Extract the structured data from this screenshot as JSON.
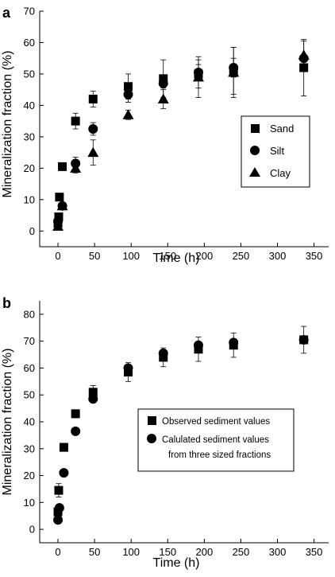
{
  "chart_data": [
    {
      "panel": "a",
      "type": "scatter",
      "xlabel": "Time (h)",
      "ylabel": "Mineralization fraction (%)",
      "xlim": [
        -25,
        370
      ],
      "ylim": [
        -5,
        70
      ],
      "xticks": [
        0,
        50,
        100,
        150,
        200,
        250,
        300,
        350
      ],
      "yticks": [
        0,
        10,
        20,
        30,
        40,
        50,
        60,
        70
      ],
      "legend_position": "middle-right",
      "grid": false,
      "series": [
        {
          "name": "Sand",
          "marker": "square",
          "points": [
            {
              "x": 0,
              "y": 2.5,
              "err": 0
            },
            {
              "x": 1,
              "y": 4.5,
              "err": 0
            },
            {
              "x": 2,
              "y": 10.8,
              "err": 0
            },
            {
              "x": 6,
              "y": 20.5,
              "err": 1.0
            },
            {
              "x": 24,
              "y": 35.0,
              "err": 2.5
            },
            {
              "x": 48,
              "y": 42.0,
              "err": 2.5
            },
            {
              "x": 96,
              "y": 46.0,
              "err": 4.0
            },
            {
              "x": 144,
              "y": 48.5,
              "err": 6.0
            },
            {
              "x": 192,
              "y": 50.0,
              "err": 4.5
            },
            {
              "x": 240,
              "y": 51.0,
              "err": 7.5
            },
            {
              "x": 336,
              "y": 52.0,
              "err": 9.0
            }
          ]
        },
        {
          "name": "Silt",
          "marker": "circle",
          "points": [
            {
              "x": 0,
              "y": 3.0,
              "err": 0
            },
            {
              "x": 6,
              "y": 8.0,
              "err": 0
            },
            {
              "x": 24,
              "y": 21.5,
              "err": 2.0
            },
            {
              "x": 48,
              "y": 32.5,
              "err": 2.0
            },
            {
              "x": 96,
              "y": 43.5,
              "err": 2.5
            },
            {
              "x": 144,
              "y": 47.0,
              "err": 1.5
            },
            {
              "x": 192,
              "y": 50.5,
              "err": 2.5
            },
            {
              "x": 240,
              "y": 52.0,
              "err": 3.0
            },
            {
              "x": 336,
              "y": 55.0,
              "err": 1.0
            }
          ]
        },
        {
          "name": "Clay",
          "marker": "triangle",
          "points": [
            {
              "x": 0,
              "y": 1.5,
              "err": 0
            },
            {
              "x": 6,
              "y": 8.0,
              "err": 0
            },
            {
              "x": 24,
              "y": 20.0,
              "err": 1.5
            },
            {
              "x": 48,
              "y": 25.0,
              "err": 4.0
            },
            {
              "x": 96,
              "y": 37.0,
              "err": 1.5
            },
            {
              "x": 144,
              "y": 42.0,
              "err": 3.0
            },
            {
              "x": 192,
              "y": 49.0,
              "err": 6.5
            },
            {
              "x": 240,
              "y": 50.5,
              "err": 8.0
            },
            {
              "x": 336,
              "y": 56.0,
              "err": 4.5
            }
          ]
        }
      ]
    },
    {
      "panel": "b",
      "type": "scatter",
      "xlabel": "Time (h)",
      "ylabel": "Mineralization fraction (%)",
      "xlim": [
        -25,
        370
      ],
      "ylim": [
        -5,
        85
      ],
      "xticks": [
        0,
        50,
        100,
        150,
        200,
        250,
        300,
        350
      ],
      "yticks": [
        0,
        10,
        20,
        30,
        40,
        50,
        60,
        70,
        80
      ],
      "legend_position": "middle-right",
      "grid": false,
      "series": [
        {
          "name": "Observed sediment values",
          "marker": "square",
          "points": [
            {
              "x": 0,
              "y": 6.5,
              "err": 0
            },
            {
              "x": 1,
              "y": 14.5,
              "err": 2.5
            },
            {
              "x": 8,
              "y": 30.5,
              "err": 1.5
            },
            {
              "x": 24,
              "y": 43.0,
              "err": 1.5
            },
            {
              "x": 48,
              "y": 51.0,
              "err": 2.5
            },
            {
              "x": 96,
              "y": 58.5,
              "err": 3.5
            },
            {
              "x": 144,
              "y": 64.0,
              "err": 3.5
            },
            {
              "x": 192,
              "y": 67.0,
              "err": 4.5
            },
            {
              "x": 240,
              "y": 68.5,
              "err": 4.5
            },
            {
              "x": 336,
              "y": 70.5,
              "err": 5.0
            }
          ]
        },
        {
          "name": "Calulated sediment values",
          "legend_subtitle": "from three sized fractions",
          "marker": "circle",
          "points": [
            {
              "x": 0,
              "y": 3.5,
              "err": 0
            },
            {
              "x": 2,
              "y": 8.0,
              "err": 0
            },
            {
              "x": 8,
              "y": 21.0,
              "err": 0
            },
            {
              "x": 24,
              "y": 36.5,
              "err": 0
            },
            {
              "x": 48,
              "y": 48.5,
              "err": 0
            },
            {
              "x": 96,
              "y": 60.0,
              "err": 0
            },
            {
              "x": 144,
              "y": 65.5,
              "err": 0
            },
            {
              "x": 192,
              "y": 68.5,
              "err": 0
            },
            {
              "x": 240,
              "y": 69.5,
              "err": 0
            },
            {
              "x": 336,
              "y": 70.5,
              "err": 0
            }
          ]
        }
      ]
    }
  ]
}
